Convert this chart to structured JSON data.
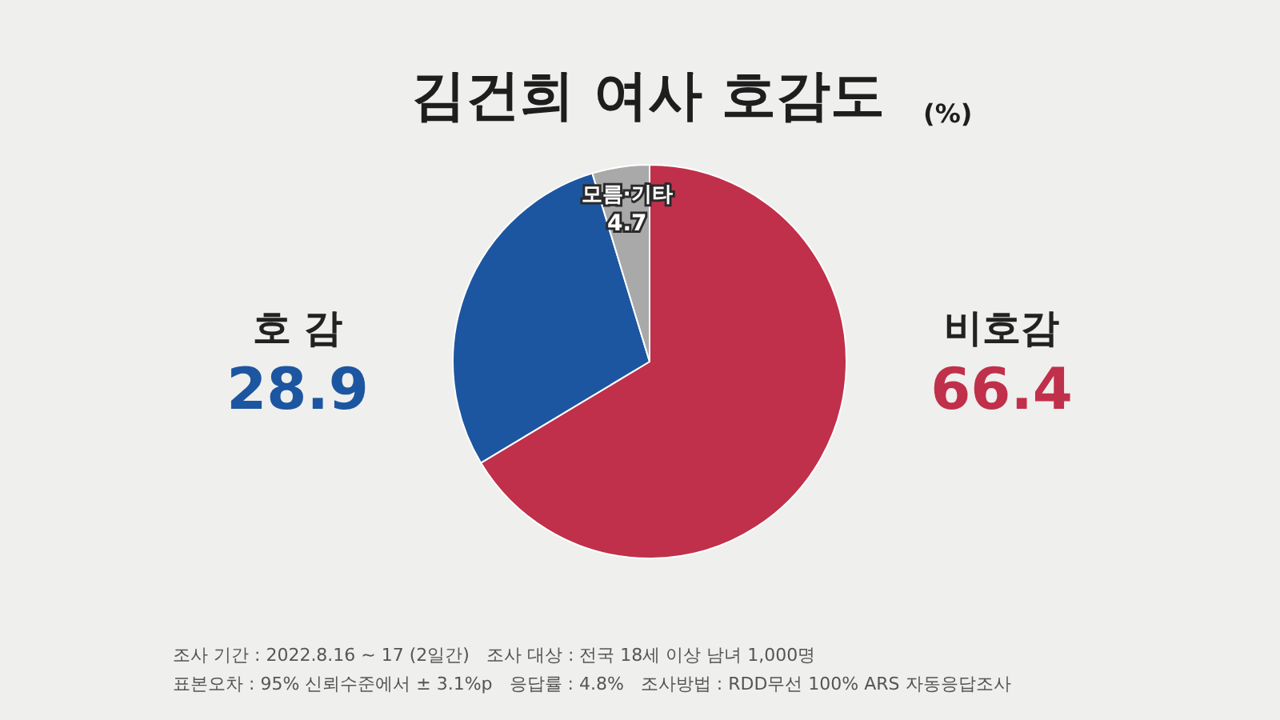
{
  "chart_data": {
    "type": "pie",
    "title": "김건희 여사 호감도",
    "subtitle": "(%)",
    "categories": [
      "비호감",
      "호 감",
      "모름·기타"
    ],
    "values": [
      66.4,
      28.9,
      4.7
    ],
    "colors": [
      "#c0304a",
      "#1d56a0",
      "#a9a9a9"
    ],
    "data_labels": true,
    "annotations": [
      "조사 기간 : 2022.8.16 ~ 17 (2일간)   조사 대상 : 전국 18세 이상 남녀 1,000명",
      "표본오차 : 95% 신뢰수준에서 ± 3.1%p   응답률 : 4.8%   조사방법 : RDD무선 100% ARS 자동응답조사"
    ]
  }
}
